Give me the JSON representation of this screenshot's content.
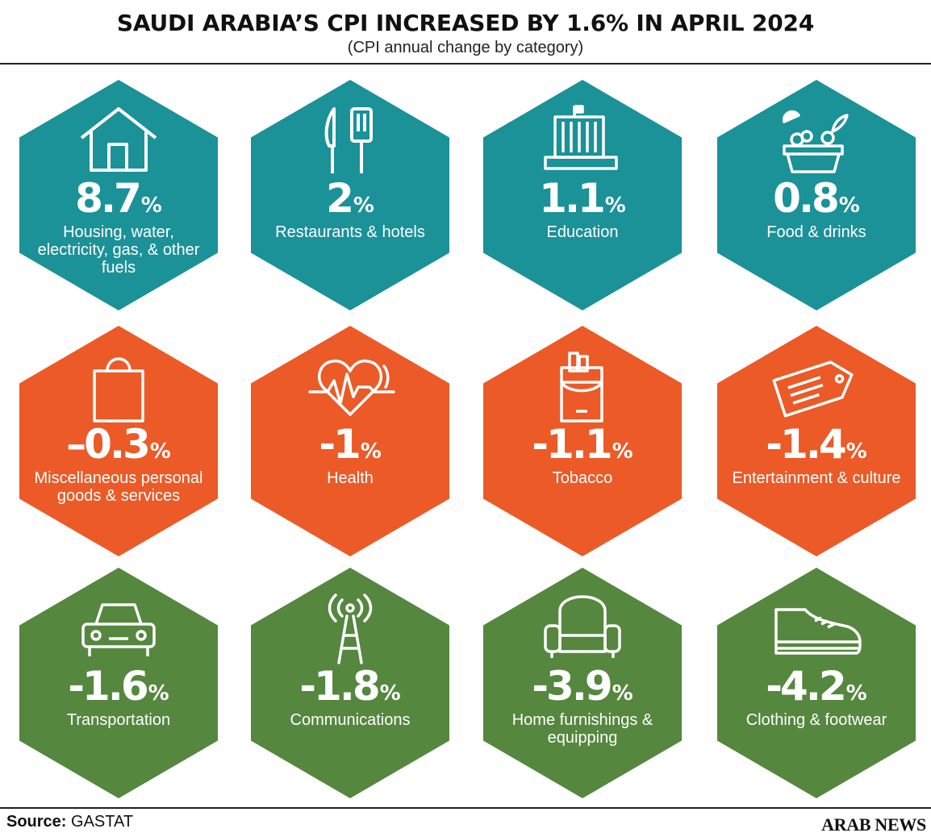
{
  "header": {
    "title": "SAUDI ARABIA’S CPI INCREASED BY 1.6% IN APRIL 2024",
    "subtitle": "(CPI annual change by category)"
  },
  "colors": {
    "teal": "#1B9198",
    "orange": "#EB5A27",
    "green": "#55873E"
  },
  "categories": [
    {
      "value": "8.7",
      "unit": "%",
      "label": "Housing, water, electricity, gas, & other fuels",
      "icon": "house-icon",
      "color": "#1B9198"
    },
    {
      "value": "2",
      "unit": "%",
      "label": "Restaurants & hotels",
      "icon": "cutlery-icon",
      "color": "#1B9198"
    },
    {
      "value": "1.1",
      "unit": "%",
      "label": "Education",
      "icon": "school-building-icon",
      "color": "#1B9198"
    },
    {
      "value": "0.8",
      "unit": "%",
      "label": "Food & drinks",
      "icon": "food-bowl-icon",
      "color": "#1B9198"
    },
    {
      "value": "–0.3",
      "unit": "%",
      "label": "Miscellaneous personal goods & services",
      "icon": "shopping-bag-icon",
      "color": "#EB5A27"
    },
    {
      "value": "-1",
      "unit": "%",
      "label": "Health",
      "icon": "heartbeat-icon",
      "color": "#EB5A27"
    },
    {
      "value": "-1.1",
      "unit": "%",
      "label": "Tobacco",
      "icon": "cigarette-pack-icon",
      "color": "#EB5A27"
    },
    {
      "value": "-1.4",
      "unit": "%",
      "label": "Entertainment & culture",
      "icon": "ticket-icon",
      "color": "#EB5A27"
    },
    {
      "value": "-1.6",
      "unit": "%",
      "label": "Transportation",
      "icon": "car-icon",
      "color": "#55873E"
    },
    {
      "value": "-1.8",
      "unit": "%",
      "label": "Communications",
      "icon": "antenna-tower-icon",
      "color": "#55873E"
    },
    {
      "value": "-3.9",
      "unit": "%",
      "label": "Home furnishings & equipping",
      "icon": "armchair-icon",
      "color": "#55873E"
    },
    {
      "value": "-4.2",
      "unit": "%",
      "label": "Clothing & footwear",
      "icon": "shoe-icon",
      "color": "#55873E"
    }
  ],
  "footer": {
    "source_label": "Source:",
    "source_value": "GASTAT",
    "brand": "ARAB NEWS"
  }
}
